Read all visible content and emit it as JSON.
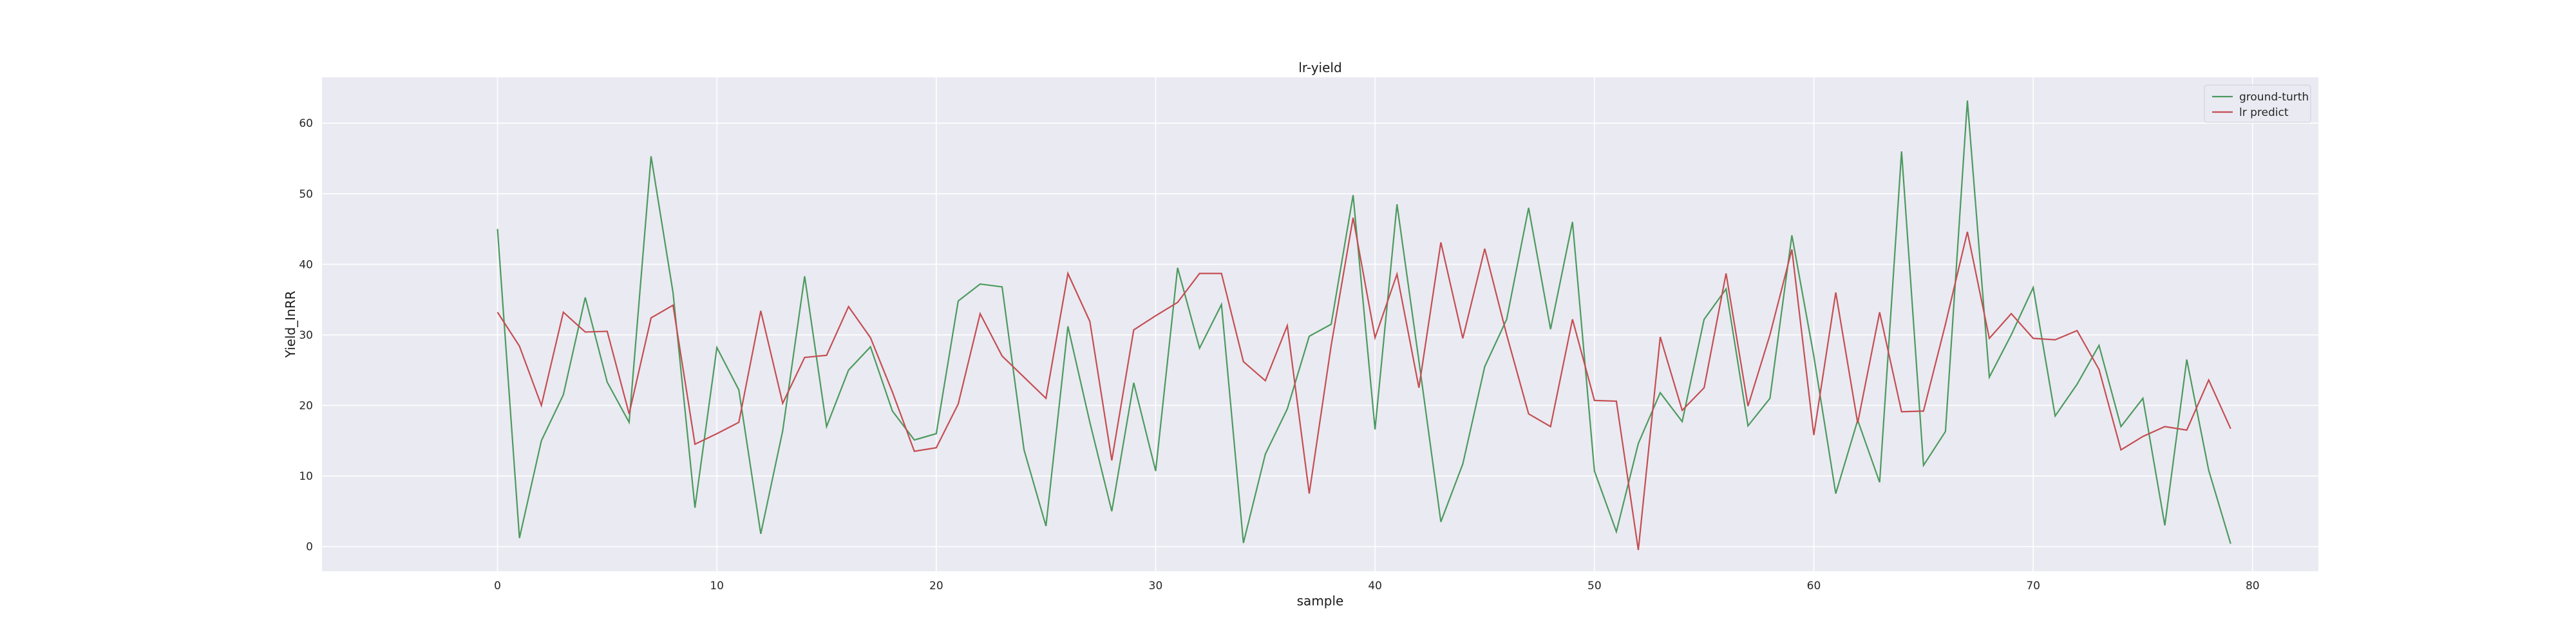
{
  "chart_data": {
    "type": "line",
    "title": "lr-yield",
    "xlabel": "sample",
    "ylabel": "Yield_InRR",
    "xlim": [
      -8,
      83
    ],
    "ylim": [
      -3.5,
      66.5
    ],
    "xticks": [
      0,
      10,
      20,
      30,
      40,
      50,
      60,
      70,
      80
    ],
    "yticks": [
      0,
      10,
      20,
      30,
      40,
      50,
      60
    ],
    "grid": true,
    "background": "#eaeaf2",
    "legend": {
      "position": "top-right"
    },
    "series": [
      {
        "name": "ground-turth",
        "color": "#4c9a5e",
        "values": [
          45.0,
          1.2,
          15.0,
          21.5,
          35.3,
          23.3,
          17.6,
          55.3,
          36.0,
          5.5,
          28.2,
          22.2,
          1.8,
          16.4,
          38.3,
          17.0,
          25.0,
          28.3,
          19.2,
          15.1,
          16.0,
          34.8,
          37.2,
          36.8,
          13.7,
          2.9,
          31.2,
          17.6,
          5.0,
          23.2,
          10.7,
          39.5,
          28.1,
          34.3,
          0.5,
          13.1,
          19.5,
          29.8,
          31.5,
          49.8,
          16.6,
          48.5,
          26.3,
          3.5,
          11.7,
          25.5,
          32.2,
          48.0,
          30.8,
          46.0,
          10.7,
          2.1,
          14.6,
          21.8,
          17.7,
          32.2,
          36.5,
          17.1,
          21.0,
          44.1,
          27.0,
          7.5,
          17.9,
          9.1,
          56.0,
          11.5,
          16.3,
          63.2,
          24.0,
          30.0,
          36.7,
          18.5,
          23.0,
          28.5,
          17.0,
          21.0,
          3.0,
          26.5,
          10.8,
          0.4
        ]
      },
      {
        "name": "lr predict",
        "color": "#c44e52",
        "values": [
          33.2,
          28.4,
          20.0,
          33.2,
          30.4,
          30.5,
          18.8,
          32.4,
          34.2,
          14.5,
          16.0,
          17.6,
          33.4,
          20.3,
          26.8,
          27.1,
          34.0,
          29.6,
          21.9,
          13.5,
          14.0,
          20.2,
          33.0,
          27.0,
          24.0,
          21.0,
          38.7,
          31.9,
          12.2,
          30.7,
          32.7,
          34.6,
          38.7,
          38.7,
          26.2,
          23.5,
          31.3,
          7.5,
          28.5,
          46.6,
          29.6,
          38.6,
          22.5,
          43.1,
          29.5,
          42.2,
          30.0,
          18.8,
          17.0,
          32.2,
          20.7,
          20.6,
          -0.5,
          29.7,
          19.3,
          22.5,
          38.7,
          19.9,
          30.0,
          42.1,
          15.8,
          36.0,
          17.5,
          33.2,
          19.1,
          19.2,
          31.5,
          44.6,
          29.5,
          33.0,
          29.5,
          29.3,
          30.6,
          25.1,
          13.7,
          15.6,
          17.0,
          16.5,
          23.6,
          16.7
        ]
      }
    ]
  }
}
